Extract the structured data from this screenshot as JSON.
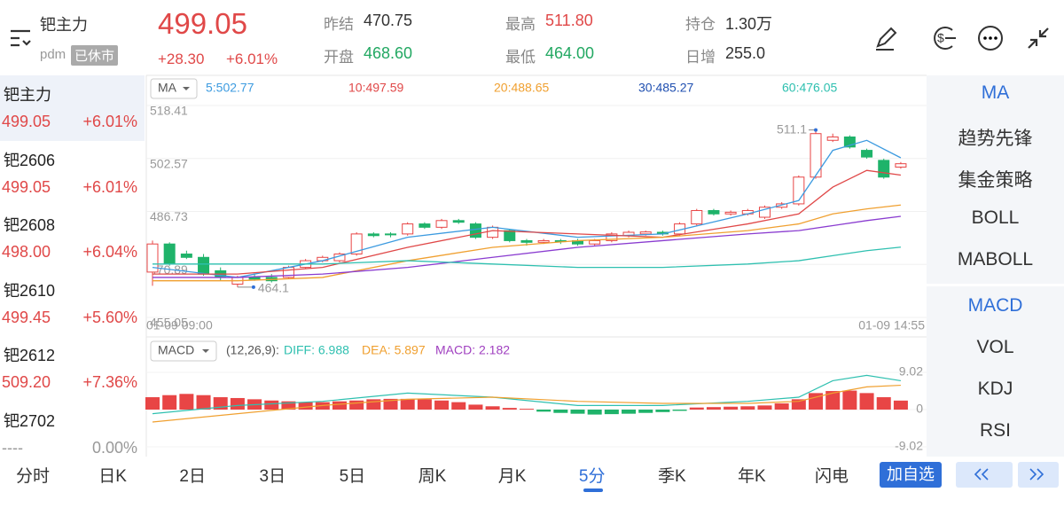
{
  "header": {
    "name": "钯主力",
    "code": "pdm",
    "status": "已休市",
    "price": "499.05",
    "change": "+28.30",
    "change_pct": "+6.01%",
    "stats": [
      {
        "label": "昨结",
        "value": "470.75"
      },
      {
        "label": "开盘",
        "value": "468.60"
      },
      {
        "label": "最高",
        "value": "511.80"
      },
      {
        "label": "最低",
        "value": "464.00"
      },
      {
        "label": "持仓",
        "value": "1.30万"
      },
      {
        "label": "日增",
        "value": "255.0"
      }
    ]
  },
  "sidebar": [
    {
      "name": "钯主力",
      "price": "499.05",
      "change": "+6.01%"
    },
    {
      "name": "钯2606",
      "price": "499.05",
      "change": "+6.01%"
    },
    {
      "name": "钯2608",
      "price": "498.00",
      "change": "+6.04%"
    },
    {
      "name": "钯2610",
      "price": "499.45",
      "change": "+5.60%"
    },
    {
      "name": "钯2612",
      "price": "509.20",
      "change": "+7.36%"
    },
    {
      "name": "钯2702",
      "price": "----",
      "change": "0.00%"
    }
  ],
  "indicators_main": [
    "MA",
    "趋势先锋",
    "集金策略",
    "BOLL",
    "MABOLL"
  ],
  "indicators_sub": [
    "MACD",
    "VOL",
    "KDJ",
    "RSI"
  ],
  "tabs": [
    "分时",
    "日K",
    "2日",
    "3日",
    "5日",
    "周K",
    "月K",
    "5分",
    "季K",
    "年K",
    "闪电"
  ],
  "button": "加自选",
  "chart": {
    "type": "candlestick",
    "selector": "MA",
    "start_label": "01-09 09:00",
    "end_label": "01-09 14:55",
    "ylim": [
      455.05,
      518.41
    ],
    "yticks": [
      518.41,
      502.57,
      486.73,
      470.89,
      455.05
    ],
    "legend": [
      {
        "label": "5:502.77",
        "color": "#3d9be0"
      },
      {
        "label": "10:497.59",
        "color": "#e04848"
      },
      {
        "label": "20:488.65",
        "color": "#f0a030"
      },
      {
        "label": "30:485.27",
        "color": "#1f4fb0"
      },
      {
        "label": "60:476.05",
        "color": "#2fc0b0"
      }
    ],
    "open": [
      468.6,
      477,
      474,
      473,
      469,
      465,
      467,
      467,
      467,
      470,
      472,
      472,
      474,
      480,
      480,
      480,
      483,
      482,
      484,
      483,
      479,
      481,
      478,
      477.5,
      478,
      478,
      477,
      478,
      479.5,
      480,
      480.5,
      480,
      483,
      487,
      486,
      486,
      485,
      488,
      489,
      497,
      508,
      509,
      505,
      502,
      500
    ],
    "close": [
      477,
      471,
      473,
      468,
      467,
      467,
      466.5,
      466,
      470,
      472,
      473,
      474,
      480,
      479.5,
      479.8,
      483,
      482,
      484,
      483.5,
      479,
      482,
      478,
      477.5,
      478,
      477.7,
      477,
      478,
      480,
      480.5,
      480.6,
      480,
      483,
      487,
      486,
      486.5,
      487,
      488,
      489,
      497,
      510,
      509,
      506,
      503,
      497,
      501
    ],
    "high": [
      478,
      477.5,
      475,
      474,
      470,
      467.5,
      468,
      468,
      470.5,
      472.5,
      473.5,
      474.5,
      480.5,
      480.5,
      480.5,
      483.5,
      483.5,
      484.5,
      484.5,
      483.5,
      482.5,
      481.5,
      478.5,
      478.5,
      478.5,
      478.5,
      478.5,
      480.5,
      481,
      481,
      481,
      483.5,
      487.5,
      487.5,
      487,
      487.5,
      488.5,
      489.5,
      497.5,
      511.1,
      510,
      509.5,
      505.5,
      502.5,
      501.5
    ],
    "low": [
      464.5,
      470.5,
      472.5,
      467.5,
      466,
      464.1,
      466,
      465.5,
      466.5,
      469.5,
      471.5,
      471.5,
      473.5,
      479,
      479,
      479.5,
      481.5,
      481.5,
      483,
      478.5,
      478.5,
      477.5,
      476.5,
      477,
      477,
      476.5,
      476.5,
      477.5,
      479,
      479.5,
      479.5,
      479.5,
      482.5,
      485.5,
      485.5,
      485.5,
      484.5,
      487.5,
      488.5,
      496.5,
      507.5,
      505.5,
      502.5,
      496.5,
      499.5
    ],
    "ma_x": [
      0,
      5,
      10,
      15,
      20,
      25,
      30,
      35,
      38,
      40,
      42,
      44
    ],
    "ma_series": [
      {
        "color": "#3d9be0",
        "values": [
          470,
          467,
          472,
          479,
          482,
          479,
          480,
          486,
          490,
          505,
          508,
          502.77
        ]
      },
      {
        "color": "#e04848",
        "values": [
          468,
          468,
          470,
          476,
          481,
          480,
          479,
          483,
          486,
          494,
          499,
          497.59
        ]
      },
      {
        "color": "#f0a030",
        "values": [
          466,
          466,
          467,
          472,
          476,
          478,
          479,
          481,
          483,
          486,
          487.5,
          488.65
        ]
      },
      {
        "color": "#8a3cd0",
        "values": [
          467,
          467,
          468,
          470,
          473,
          476,
          478,
          480,
          481,
          482.5,
          484,
          485.27
        ]
      },
      {
        "color": "#2fc0b0",
        "values": [
          471,
          471,
          471,
          472,
          471,
          470,
          470,
          471,
          472,
          473.5,
          475,
          476.05
        ]
      }
    ]
  },
  "macd": {
    "selector": "MACD",
    "params": "(12,26,9):",
    "legend": [
      {
        "label": "DIFF: 6.988",
        "color": "#2fc0b0"
      },
      {
        "label": "DEA: 5.897",
        "color": "#f0a030"
      },
      {
        "label": "MACD: 2.182",
        "color": "#a040c0"
      }
    ],
    "ylim": [
      -9.02,
      9.02
    ],
    "yticks": [
      9.02,
      0,
      -9.02
    ],
    "histogram": [
      3,
      3.5,
      3.8,
      3.5,
      3,
      2.8,
      2.5,
      2.2,
      2,
      1.8,
      1.8,
      2,
      2.2,
      2.5,
      2.6,
      2.6,
      2.5,
      2.2,
      1.8,
      1.2,
      0.8,
      0.4,
      0.2,
      -0.5,
      -0.8,
      -1,
      -1.2,
      -1.1,
      -1,
      -0.8,
      -0.6,
      -0.3,
      0.5,
      0.6,
      0.7,
      0.8,
      1,
      1.5,
      2.5,
      4,
      4.5,
      4.6,
      4,
      3,
      2.182
    ],
    "x": [
      0,
      5,
      10,
      15,
      20,
      25,
      30,
      35,
      38,
      40,
      42,
      44
    ],
    "diff": [
      -1,
      1,
      2,
      4,
      3,
      1,
      1,
      2,
      3,
      7,
      8.3,
      6.988
    ],
    "dea": [
      -3,
      -1,
      1,
      2.5,
      3,
      2,
      1.5,
      1.5,
      2,
      4,
      5.5,
      5.897
    ]
  }
}
